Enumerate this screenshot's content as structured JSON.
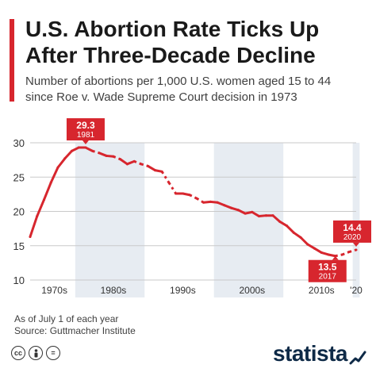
{
  "header": {
    "title_line1": "U.S. Abortion Rate Ticks Up",
    "title_line2": "After Three-Decade Decline",
    "subtitle_line1": "Number of abortions per 1,000 U.S. women aged 15 to 44",
    "subtitle_line2": "since Roe v. Wade Supreme Court decision in 1973"
  },
  "footer": {
    "note": "As of July 1 of each year",
    "source": "Source: Guttmacher Institute",
    "brand": "statista",
    "license_icons": [
      "cc-icon",
      "person-icon",
      "equals-icon"
    ]
  },
  "colors": {
    "accent": "#d7262e",
    "shade": "#e7ecf2",
    "grid": "#c9c9c9",
    "text": "#333333"
  },
  "chart_data": {
    "type": "line",
    "title": "U.S. Abortion Rate Ticks Up After Three-Decade Decline",
    "xlabel": "",
    "ylabel": "",
    "ylim": [
      10,
      30
    ],
    "yticks": [
      10,
      15,
      20,
      25,
      30
    ],
    "xlim": [
      1973,
      2020
    ],
    "x_tick_labels": [
      {
        "label": "1970s",
        "x": 1976.5
      },
      {
        "label": "1980s",
        "x": 1985
      },
      {
        "label": "1990s",
        "x": 1995
      },
      {
        "label": "2000s",
        "x": 2005
      },
      {
        "label": "2010s",
        "x": 2015
      },
      {
        "label": "'20",
        "x": 2020
      }
    ],
    "shaded_decades": [
      [
        1980,
        1989
      ],
      [
        2000,
        2009
      ],
      [
        2020,
        2020
      ]
    ],
    "grid": true,
    "series": [
      {
        "points": [
          {
            "x": 1973,
            "y": 16.3,
            "dashed_before": false
          },
          {
            "x": 1974,
            "y": 19.3,
            "dashed_before": false
          },
          {
            "x": 1975,
            "y": 21.7,
            "dashed_before": false
          },
          {
            "x": 1976,
            "y": 24.2,
            "dashed_before": false
          },
          {
            "x": 1977,
            "y": 26.4,
            "dashed_before": false
          },
          {
            "x": 1978,
            "y": 27.7,
            "dashed_before": false
          },
          {
            "x": 1979,
            "y": 28.8,
            "dashed_before": false
          },
          {
            "x": 1980,
            "y": 29.3,
            "dashed_before": false
          },
          {
            "x": 1981,
            "y": 29.3,
            "dashed_before": false
          },
          {
            "x": 1982,
            "y": 28.8,
            "dashed_before": false
          },
          {
            "x": 1983,
            "y": 28.5,
            "dashed_before": true
          },
          {
            "x": 1984,
            "y": 28.1,
            "dashed_before": false
          },
          {
            "x": 1985,
            "y": 28.0,
            "dashed_before": false
          },
          {
            "x": 1986,
            "y": 27.6,
            "dashed_before": true
          },
          {
            "x": 1987,
            "y": 26.9,
            "dashed_before": false
          },
          {
            "x": 1988,
            "y": 27.3,
            "dashed_before": false
          },
          {
            "x": 1989,
            "y": 26.9,
            "dashed_before": true
          },
          {
            "x": 1990,
            "y": 26.6,
            "dashed_before": true
          },
          {
            "x": 1991,
            "y": 26.0,
            "dashed_before": false
          },
          {
            "x": 1992,
            "y": 25.8,
            "dashed_before": false
          },
          {
            "x": 1993,
            "y": 24.2,
            "dashed_before": true
          },
          {
            "x": 1994,
            "y": 22.6,
            "dashed_before": true
          },
          {
            "x": 1995,
            "y": 22.6,
            "dashed_before": false
          },
          {
            "x": 1996,
            "y": 22.4,
            "dashed_before": false
          },
          {
            "x": 1997,
            "y": 21.9,
            "dashed_before": true
          },
          {
            "x": 1998,
            "y": 21.3,
            "dashed_before": true
          },
          {
            "x": 1999,
            "y": 21.4,
            "dashed_before": false
          },
          {
            "x": 2000,
            "y": 21.3,
            "dashed_before": false
          },
          {
            "x": 2001,
            "y": 20.9,
            "dashed_before": false
          },
          {
            "x": 2002,
            "y": 20.5,
            "dashed_before": false
          },
          {
            "x": 2003,
            "y": 20.2,
            "dashed_before": false
          },
          {
            "x": 2004,
            "y": 19.7,
            "dashed_before": false
          },
          {
            "x": 2005,
            "y": 19.9,
            "dashed_before": false
          },
          {
            "x": 2006,
            "y": 19.3,
            "dashed_before": false
          },
          {
            "x": 2007,
            "y": 19.4,
            "dashed_before": false
          },
          {
            "x": 2008,
            "y": 19.4,
            "dashed_before": false
          },
          {
            "x": 2009,
            "y": 18.5,
            "dashed_before": false
          },
          {
            "x": 2010,
            "y": 17.9,
            "dashed_before": false
          },
          {
            "x": 2011,
            "y": 16.9,
            "dashed_before": false
          },
          {
            "x": 2012,
            "y": 16.2,
            "dashed_before": false
          },
          {
            "x": 2013,
            "y": 15.2,
            "dashed_before": false
          },
          {
            "x": 2014,
            "y": 14.6,
            "dashed_before": false
          },
          {
            "x": 2015,
            "y": 14.0,
            "dashed_before": false
          },
          {
            "x": 2016,
            "y": 13.7,
            "dashed_before": false
          },
          {
            "x": 2017,
            "y": 13.5,
            "dashed_before": false
          },
          {
            "x": 2018,
            "y": 13.7,
            "dashed_before": true
          },
          {
            "x": 2019,
            "y": 14.1,
            "dashed_before": true
          },
          {
            "x": 2020,
            "y": 14.4,
            "dashed_before": true
          }
        ]
      }
    ],
    "annotations": [
      {
        "value": "29.3",
        "year": "1981",
        "x": 1981,
        "y": 29.3,
        "placement": "above"
      },
      {
        "value": "13.5",
        "year": "2017",
        "x": 2017,
        "y": 13.5,
        "placement": "below"
      },
      {
        "value": "14.4",
        "year": "2020",
        "x": 2020,
        "y": 14.4,
        "placement": "above"
      }
    ]
  }
}
